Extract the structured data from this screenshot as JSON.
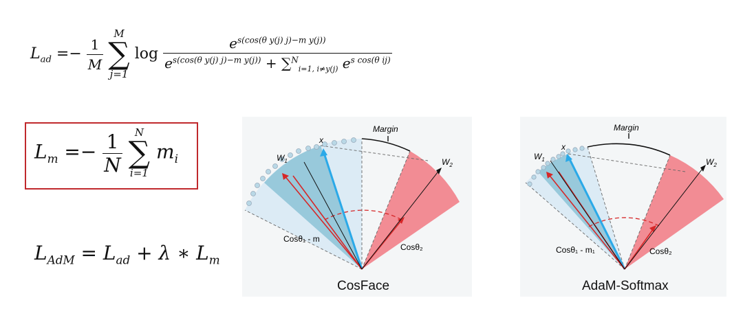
{
  "equations": {
    "lad": {
      "lhs": "L",
      "lhs_sub": "ad",
      "eq": "=",
      "minus": "−",
      "one": "1",
      "M": "M",
      "sum": "∑",
      "sum_top": "M",
      "sum_bottom": "j=1",
      "log": "log",
      "num": "e",
      "num_sup": "s(cos(θ y(j) j)−m y(j))",
      "den_e": "e",
      "den_sup": "s(cos(θ y(j) j)−m y(j))",
      "den_plus": "+",
      "den_sum": "∑",
      "den_sum_top": "N",
      "den_sum_bottom": "i=1, i≠y(j)",
      "den_e2": "e",
      "den_e2_sup": "s cos(θ ij)"
    },
    "lm": {
      "lhs": "L",
      "lhs_sub": "m",
      "eq": "=",
      "minus": "−",
      "one": "1",
      "N": "N",
      "sum": "∑",
      "sum_top": "N",
      "sum_bottom": "i=1",
      "m": "m",
      "m_sub": "i"
    },
    "adm": {
      "lhs": "L",
      "lhs_sub": "AdM",
      "eq": "=",
      "l1": "L",
      "l1_sub": "ad",
      "plus": "+",
      "lambda": "λ",
      "star": "∗",
      "l2": "L",
      "l2_sub": "m"
    }
  },
  "diagrams": [
    {
      "caption": "CosFace",
      "margin_label": "Margin",
      "x_label": "x",
      "w1_label": "W",
      "w1_sub": "1",
      "w2_label": "W",
      "w2_sub": "2",
      "cos1_label": "Cosθ₁ - m",
      "cos2_label": "Cosθ₂"
    },
    {
      "caption": "AdaM-Softmax",
      "margin_label": "Margin",
      "x_label": "x",
      "w1_label": "W",
      "w1_sub": "1",
      "w2_label": "W",
      "w2_sub": "2",
      "cos1_label": "Cosθ₁ - m₁",
      "cos2_label": "Cosθ₂"
    }
  ],
  "colors": {
    "box_border": "#c0282c",
    "light_blue": "#dcebf5",
    "mid_blue": "#8cc3d6",
    "red_sector": "#f28c94",
    "arrow_blue": "#2aa9e8",
    "arrow_red": "#d62728",
    "dots": "#b9d8e6"
  }
}
